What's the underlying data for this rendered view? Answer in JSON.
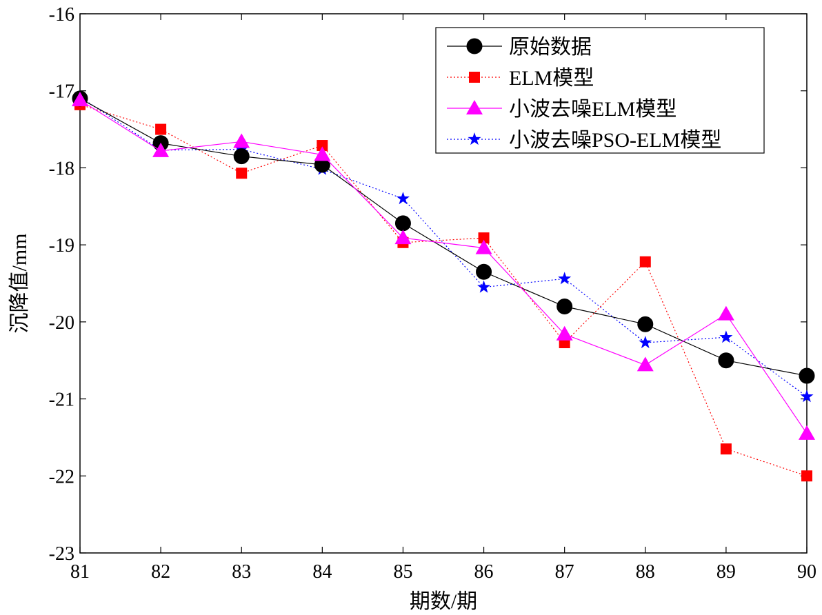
{
  "chart_data": {
    "type": "line",
    "xlabel": "期数/期",
    "ylabel": "沉降值/mm",
    "x": [
      81,
      82,
      83,
      84,
      85,
      86,
      87,
      88,
      89,
      90
    ],
    "xlim": [
      81,
      90
    ],
    "ylim": [
      -23,
      -16
    ],
    "xticks": [
      81,
      82,
      83,
      84,
      85,
      86,
      87,
      88,
      89,
      90
    ],
    "yticks": [
      -16,
      -17,
      -18,
      -19,
      -20,
      -21,
      -22,
      -23
    ],
    "grid": false,
    "legend_position": "top-right",
    "series": [
      {
        "name": "原始数据",
        "color": "#000000",
        "marker": "circle",
        "line": "solid",
        "values": [
          -17.1,
          -17.68,
          -17.85,
          -17.96,
          -18.72,
          -19.35,
          -19.8,
          -20.03,
          -20.5,
          -20.7
        ]
      },
      {
        "name": "ELM模型",
        "color": "#ff0000",
        "marker": "square",
        "line": "dotted",
        "values": [
          -17.18,
          -17.5,
          -18.07,
          -17.71,
          -18.97,
          -18.91,
          -20.27,
          -19.22,
          -21.65,
          -22.0
        ]
      },
      {
        "name": "小波去噪ELM模型",
        "color": "#ff00ff",
        "marker": "triangle",
        "line": "solid",
        "values": [
          -17.12,
          -17.78,
          -17.66,
          -17.83,
          -18.91,
          -19.04,
          -20.16,
          -20.56,
          -19.9,
          -21.45
        ]
      },
      {
        "name": "小波去噪PSO-ELM模型",
        "color": "#0000ff",
        "marker": "star",
        "line": "dotted",
        "values": [
          -17.08,
          -17.77,
          -17.76,
          -18.02,
          -18.4,
          -19.55,
          -19.44,
          -20.27,
          -20.2,
          -20.97
        ]
      }
    ]
  }
}
